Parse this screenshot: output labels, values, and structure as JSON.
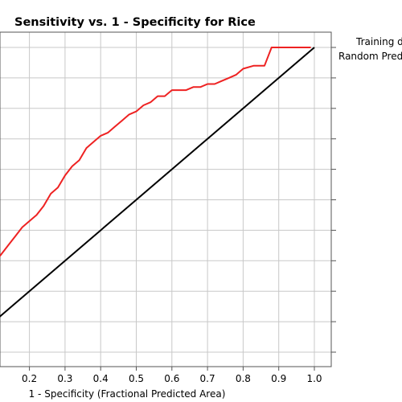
{
  "chart_data": {
    "type": "line",
    "title": "Sensitivity vs. 1 - Specificity for Rice",
    "xlabel": "1 - Specificity  (Fractional Predicted Area)",
    "ylabel": "",
    "xlim": [
      0.0,
      1.05
    ],
    "ylim": [
      0.0,
      1.05
    ],
    "grid": true,
    "legend_placement": "right",
    "x_tick_labels": [
      "0.2",
      "0.3",
      "0.4",
      "0.5",
      "0.6",
      "0.7",
      "0.8",
      "0.9",
      "1.0"
    ],
    "series": [
      {
        "name": "Training data",
        "color": "#ee2222",
        "x": [
          0.0,
          0.02,
          0.04,
          0.06,
          0.08,
          0.1,
          0.12,
          0.14,
          0.16,
          0.18,
          0.2,
          0.22,
          0.24,
          0.26,
          0.28,
          0.3,
          0.32,
          0.34,
          0.36,
          0.38,
          0.4,
          0.42,
          0.44,
          0.46,
          0.48,
          0.5,
          0.52,
          0.54,
          0.56,
          0.58,
          0.6,
          0.62,
          0.64,
          0.66,
          0.68,
          0.7,
          0.72,
          0.74,
          0.76,
          0.78,
          0.8,
          0.83,
          0.86,
          0.88,
          0.9,
          0.93,
          0.96,
          0.99
        ],
        "y": [
          0.0,
          0.06,
          0.13,
          0.19,
          0.25,
          0.29,
          0.32,
          0.35,
          0.38,
          0.41,
          0.43,
          0.45,
          0.48,
          0.52,
          0.54,
          0.58,
          0.61,
          0.63,
          0.67,
          0.69,
          0.71,
          0.72,
          0.74,
          0.76,
          0.78,
          0.79,
          0.81,
          0.82,
          0.84,
          0.84,
          0.86,
          0.86,
          0.86,
          0.87,
          0.87,
          0.88,
          0.88,
          0.89,
          0.9,
          0.91,
          0.93,
          0.94,
          0.94,
          1.0,
          1.0,
          1.0,
          1.0,
          1.0
        ]
      },
      {
        "name": "Random Prediction",
        "color": "#000000",
        "x": [
          0.0,
          1.0
        ],
        "y": [
          0.0,
          1.0
        ]
      }
    ]
  },
  "legend": {
    "line1": "Training d",
    "line2": "Random Pred"
  }
}
